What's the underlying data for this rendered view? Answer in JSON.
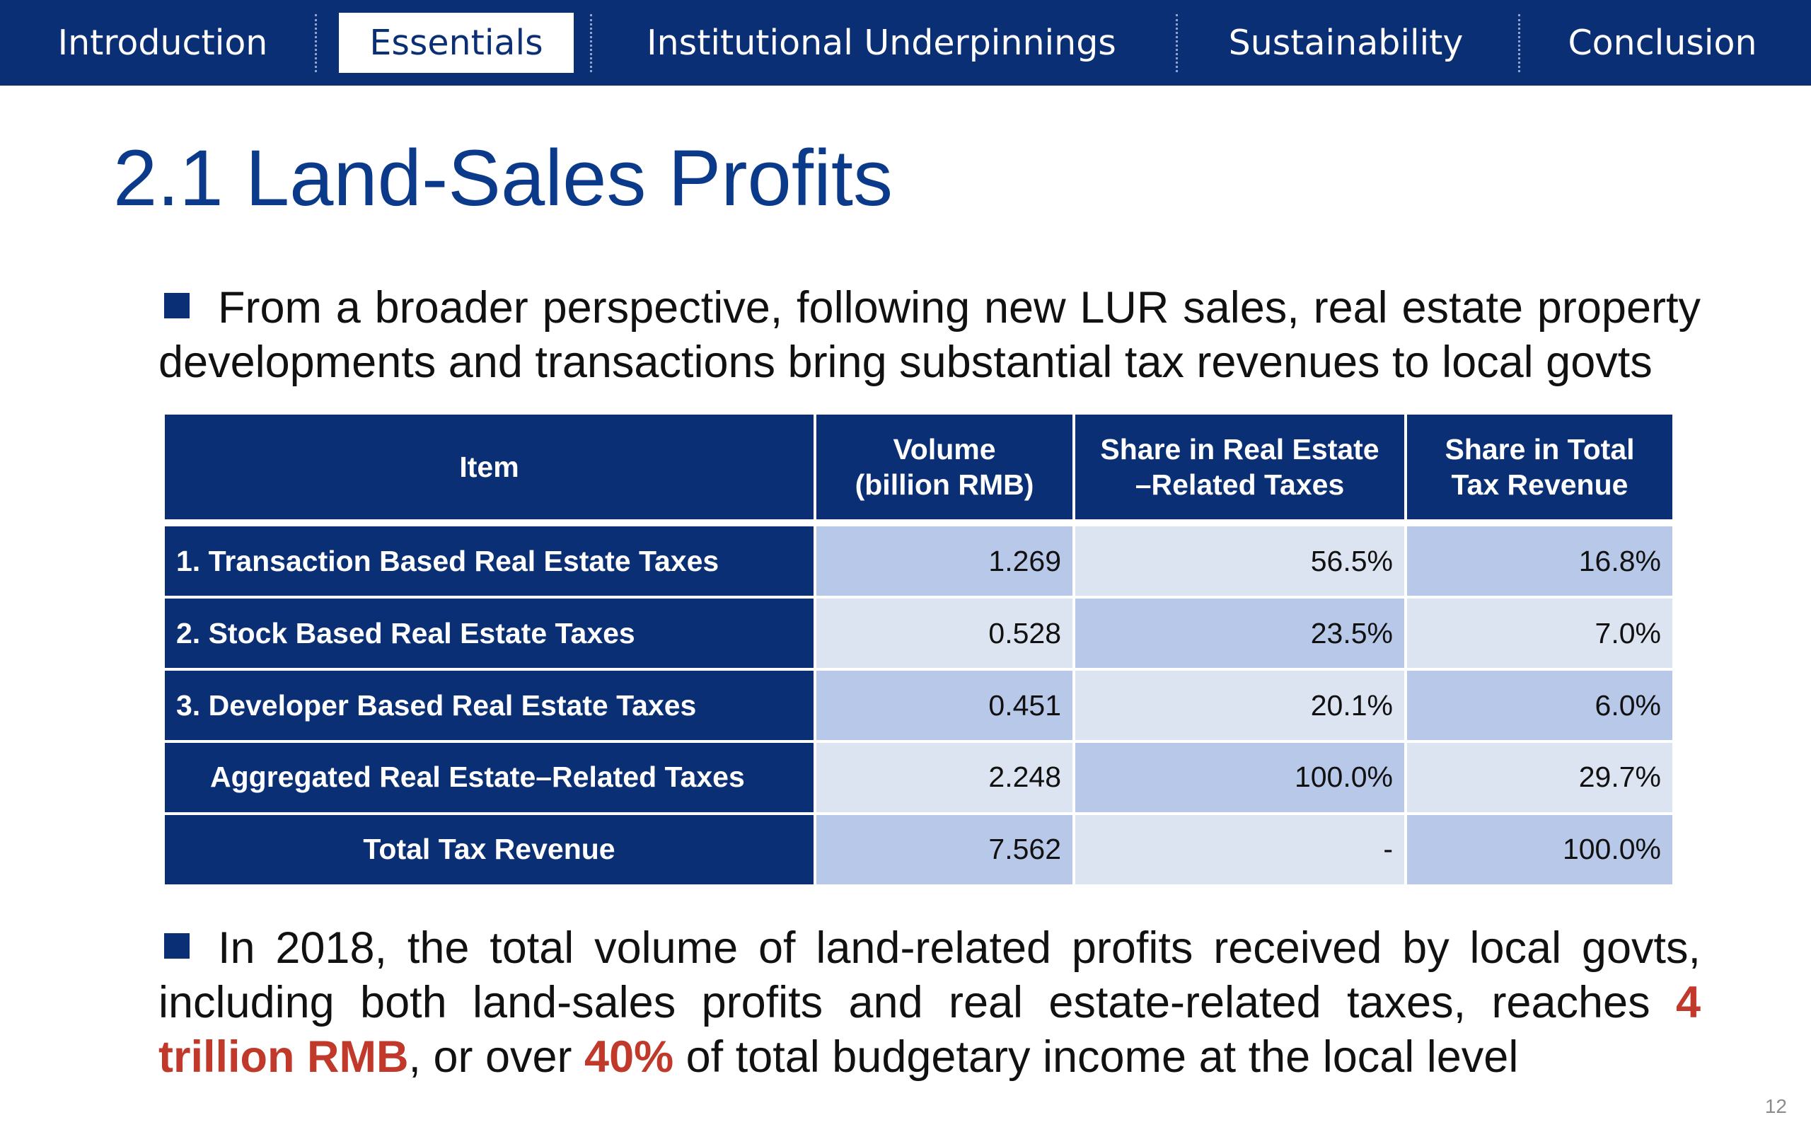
{
  "nav": {
    "tabs": [
      {
        "label": "Introduction",
        "active": false
      },
      {
        "label": "Essentials",
        "active": true
      },
      {
        "label": "Institutional Underpinnings",
        "active": false
      },
      {
        "label": "Sustainability",
        "active": false
      },
      {
        "label": "Conclusion",
        "active": false
      }
    ]
  },
  "title": "2.1 Land-Sales Profits",
  "bullet1": {
    "text": "From a broader perspective, following new LUR sales, real estate property developments and transactions bring substantial tax revenues to local govts"
  },
  "table": {
    "headers": {
      "item": "Item",
      "volume_line1": "Volume",
      "volume_line2": "(billion RMB)",
      "share_re_line1": "Share in Real Estate",
      "share_re_line2": "–Related Taxes",
      "share_total_line1": "Share in Total",
      "share_total_line2": "Tax Revenue"
    },
    "rows": [
      {
        "item": "1. Transaction Based Real Estate Taxes",
        "volume": "1.269",
        "share_re": "56.5%",
        "share_total": "16.8%"
      },
      {
        "item": "2. Stock Based Real Estate Taxes",
        "volume": "0.528",
        "share_re": "23.5%",
        "share_total": "7.0%"
      },
      {
        "item": "3. Developer Based Real Estate Taxes",
        "volume": "0.451",
        "share_re": "20.1%",
        "share_total": "6.0%"
      },
      {
        "item": "Aggregated Real Estate–Related Taxes",
        "volume": "2.248",
        "share_re": "100.0%",
        "share_total": "29.7%"
      },
      {
        "item": "Total Tax Revenue",
        "volume": "7.562",
        "share_re": "-",
        "share_total": "100.0%"
      }
    ]
  },
  "bullet2": {
    "part1": "In 2018, the total volume of land-related profits received by local govts, including both land-sales profits and real estate-related taxes, reaches ",
    "highlight1": "4 trillion RMB",
    "part2": ", or over ",
    "highlight2": "40%",
    "part3": " of total budgetary income at the local level"
  },
  "page_number": "12",
  "colors": {
    "navy": "#0b2f74",
    "title_blue": "#0b3a8a",
    "highlight_red": "#c0392b",
    "cell_dark": "#b8c8e8",
    "cell_light": "#dce4f2"
  }
}
